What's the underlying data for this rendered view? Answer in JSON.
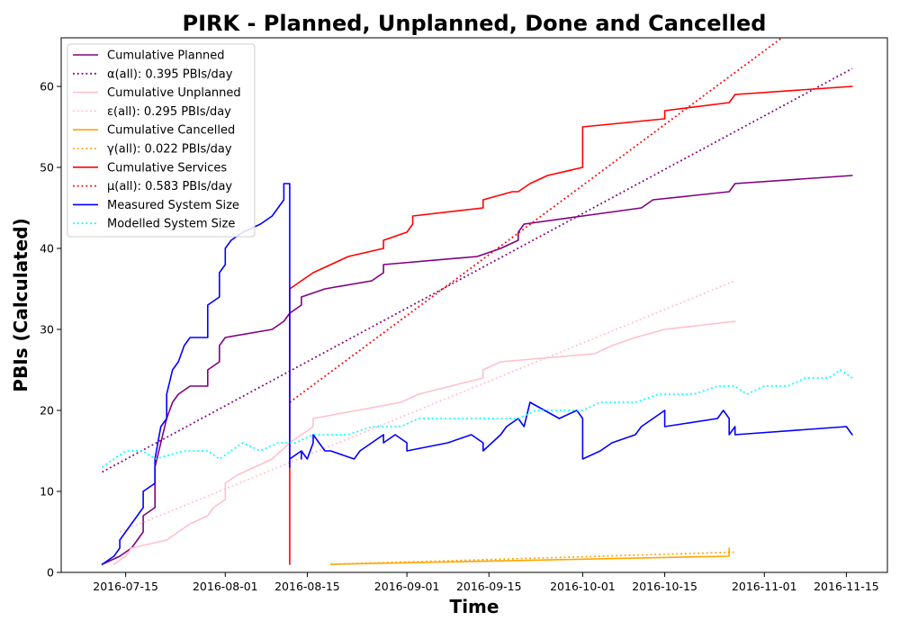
{
  "chart_data": {
    "type": "line",
    "title": "PIRK - Planned, Unplanned, Done  and Cancelled",
    "xlabel": "Time",
    "ylabel": "PBIs (Calculated)",
    "xlim": [
      "2016-07-04",
      "2016-11-22"
    ],
    "ylim": [
      0,
      66
    ],
    "x_ticks": [
      "2016-07-15",
      "2016-08-01",
      "2016-08-15",
      "2016-09-01",
      "2016-09-15",
      "2016-10-01",
      "2016-10-15",
      "2016-11-01",
      "2016-11-15"
    ],
    "y_ticks": [
      0,
      10,
      20,
      30,
      40,
      50,
      60
    ],
    "grid": false,
    "legend_position": "upper-left",
    "series": [
      {
        "name": "Cumulative Planned",
        "color": "#800080",
        "style": "solid",
        "x": [
          "2016-07-11",
          "2016-07-14",
          "2016-07-16",
          "2016-07-17",
          "2016-07-18",
          "2016-07-18",
          "2016-07-20",
          "2016-07-20",
          "2016-07-21",
          "2016-07-22",
          "2016-07-23",
          "2016-07-24",
          "2016-07-26",
          "2016-07-29",
          "2016-07-29",
          "2016-07-31",
          "2016-07-31",
          "2016-08-01",
          "2016-08-09",
          "2016-08-11",
          "2016-08-12",
          "2016-08-14",
          "2016-08-14",
          "2016-08-18",
          "2016-08-26",
          "2016-08-28",
          "2016-08-28",
          "2016-09-13",
          "2016-09-17",
          "2016-09-20",
          "2016-09-20",
          "2016-09-21",
          "2016-10-01",
          "2016-10-11",
          "2016-10-13",
          "2016-10-26",
          "2016-10-27",
          "2016-11-16"
        ],
        "y": [
          1,
          2,
          3,
          4,
          5,
          7,
          8,
          13,
          16,
          19,
          21,
          22,
          23,
          23,
          25,
          26,
          28,
          29,
          30,
          31,
          32,
          33,
          34,
          35,
          36,
          37,
          38,
          39,
          40,
          41,
          42,
          43,
          44,
          45,
          46,
          47,
          48,
          49
        ]
      },
      {
        "name": "α(all): 0.395 PBIs/day",
        "color": "#800080",
        "style": "dotted",
        "x": [
          "2016-07-11",
          "2016-11-16"
        ],
        "y": [
          12.4,
          62.2
        ]
      },
      {
        "name": "Cumulative Unplanned",
        "color": "#ffc0cb",
        "style": "solid",
        "x": [
          "2016-07-13",
          "2016-07-15",
          "2016-07-16",
          "2016-07-22",
          "2016-07-24",
          "2016-07-26",
          "2016-07-29",
          "2016-07-30",
          "2016-08-01",
          "2016-08-01",
          "2016-08-03",
          "2016-08-06",
          "2016-08-09",
          "2016-08-12",
          "2016-08-16",
          "2016-08-16",
          "2016-08-31",
          "2016-09-03",
          "2016-09-14",
          "2016-09-14",
          "2016-09-17",
          "2016-10-03",
          "2016-10-06",
          "2016-10-10",
          "2016-10-15",
          "2016-10-27"
        ],
        "y": [
          1,
          2,
          3,
          4,
          5,
          6,
          7,
          8,
          9,
          11,
          12,
          13,
          14,
          16,
          18,
          19,
          21,
          22,
          24,
          25,
          26,
          27,
          28,
          29,
          30,
          31
        ]
      },
      {
        "name": "ε(all): 0.295 PBIs/day",
        "color": "#ffc0cb",
        "style": "dotted",
        "x": [
          "2016-07-14",
          "2016-10-27"
        ],
        "y": [
          5,
          36
        ]
      },
      {
        "name": "Cumulative Cancelled",
        "color": "#ffa500",
        "style": "solid",
        "x": [
          "2016-08-19",
          "2016-10-26",
          "2016-10-26"
        ],
        "y": [
          1,
          2,
          3
        ]
      },
      {
        "name": "γ(all): 0.022 PBIs/day",
        "color": "#ffa500",
        "style": "dotted",
        "x": [
          "2016-08-19",
          "2016-10-27"
        ],
        "y": [
          1,
          2.5
        ]
      },
      {
        "name": "Cumulative Services",
        "color": "#ff0000",
        "style": "solid",
        "x": [
          "2016-08-12",
          "2016-08-12",
          "2016-08-14",
          "2016-08-16",
          "2016-08-19",
          "2016-08-22",
          "2016-08-28",
          "2016-08-28",
          "2016-09-01",
          "2016-09-02",
          "2016-09-02",
          "2016-09-14",
          "2016-09-14",
          "2016-09-19",
          "2016-09-20",
          "2016-09-22",
          "2016-09-25",
          "2016-10-01",
          "2016-10-01",
          "2016-10-15",
          "2016-10-15",
          "2016-10-26",
          "2016-10-27",
          "2016-11-16"
        ],
        "y": [
          1,
          35,
          36,
          37,
          38,
          39,
          40,
          41,
          42,
          43,
          44,
          45,
          46,
          47,
          47,
          48,
          49,
          50,
          55,
          56,
          57,
          58,
          59,
          60
        ]
      },
      {
        "name": "μ(all): 0.583 PBIs/day",
        "color": "#ff0000",
        "style": "dotted",
        "x": [
          "2016-08-12",
          "2016-11-04"
        ],
        "y": [
          21,
          66
        ]
      },
      {
        "name": "Measured System Size",
        "color": "#0000ff",
        "style": "solid",
        "x": [
          "2016-07-11",
          "2016-07-13",
          "2016-07-14",
          "2016-07-14",
          "2016-07-15",
          "2016-07-16",
          "2016-07-17",
          "2016-07-18",
          "2016-07-18",
          "2016-07-20",
          "2016-07-20",
          "2016-07-21",
          "2016-07-22",
          "2016-07-22",
          "2016-07-23",
          "2016-07-24",
          "2016-07-25",
          "2016-07-26",
          "2016-07-29",
          "2016-07-29",
          "2016-07-31",
          "2016-07-31",
          "2016-08-01",
          "2016-08-01",
          "2016-08-02",
          "2016-08-04",
          "2016-08-07",
          "2016-08-09",
          "2016-08-10",
          "2016-08-11",
          "2016-08-11",
          "2016-08-12",
          "2016-08-12",
          "2016-08-12",
          "2016-08-14",
          "2016-08-14",
          "2016-08-14",
          "2016-08-15",
          "2016-08-16",
          "2016-08-16",
          "2016-08-18",
          "2016-08-19",
          "2016-08-23",
          "2016-08-24",
          "2016-08-28",
          "2016-08-28",
          "2016-08-30",
          "2016-09-01",
          "2016-09-01",
          "2016-09-08",
          "2016-09-12",
          "2016-09-14",
          "2016-09-14",
          "2016-09-17",
          "2016-09-18",
          "2016-09-20",
          "2016-09-21",
          "2016-09-22",
          "2016-09-27",
          "2016-09-30",
          "2016-10-01",
          "2016-10-01",
          "2016-10-04",
          "2016-10-06",
          "2016-10-10",
          "2016-10-11",
          "2016-10-15",
          "2016-10-15",
          "2016-10-24",
          "2016-10-25",
          "2016-10-26",
          "2016-10-26",
          "2016-10-27",
          "2016-10-27",
          "2016-11-15",
          "2016-11-16"
        ],
        "y": [
          1,
          2,
          3,
          4,
          5,
          6,
          7,
          8,
          10,
          11,
          14,
          18,
          19,
          22,
          25,
          26,
          28,
          29,
          29,
          33,
          34,
          37,
          38,
          40,
          41,
          42,
          43,
          44,
          45,
          46,
          48,
          48,
          13,
          14,
          15,
          14,
          15,
          14,
          16,
          17,
          15,
          15,
          14,
          15,
          17,
          16,
          17,
          16,
          15,
          16,
          17,
          16,
          15,
          17,
          18,
          19,
          18,
          21,
          19,
          20,
          19,
          14,
          15,
          16,
          17,
          18,
          20,
          18,
          19,
          20,
          19,
          17,
          18,
          17,
          18,
          17
        ]
      },
      {
        "name": "Modelled System Size",
        "color": "#00ffff",
        "style": "dotted",
        "x": [
          "2016-07-11",
          "2016-07-13",
          "2016-07-15",
          "2016-07-18",
          "2016-07-20",
          "2016-07-25",
          "2016-07-29",
          "2016-07-31",
          "2016-08-04",
          "2016-08-07",
          "2016-08-10",
          "2016-08-13",
          "2016-08-16",
          "2016-08-19",
          "2016-08-22",
          "2016-08-26",
          "2016-08-28",
          "2016-08-31",
          "2016-09-03",
          "2016-09-07",
          "2016-09-10",
          "2016-09-15",
          "2016-09-20",
          "2016-09-23",
          "2016-09-27",
          "2016-10-01",
          "2016-10-04",
          "2016-10-07",
          "2016-10-10",
          "2016-10-14",
          "2016-10-17",
          "2016-10-20",
          "2016-10-24",
          "2016-10-27",
          "2016-10-29",
          "2016-11-01",
          "2016-11-05",
          "2016-11-08",
          "2016-11-12",
          "2016-11-14",
          "2016-11-16"
        ],
        "y": [
          13,
          14,
          15,
          15,
          14,
          15,
          15,
          14,
          16,
          15,
          16,
          16,
          17,
          17,
          17,
          18,
          18,
          18,
          19,
          19,
          19,
          19,
          19,
          20,
          20,
          20,
          21,
          21,
          21,
          22,
          22,
          22,
          23,
          23,
          22,
          23,
          23,
          24,
          24,
          25,
          24
        ]
      }
    ]
  }
}
